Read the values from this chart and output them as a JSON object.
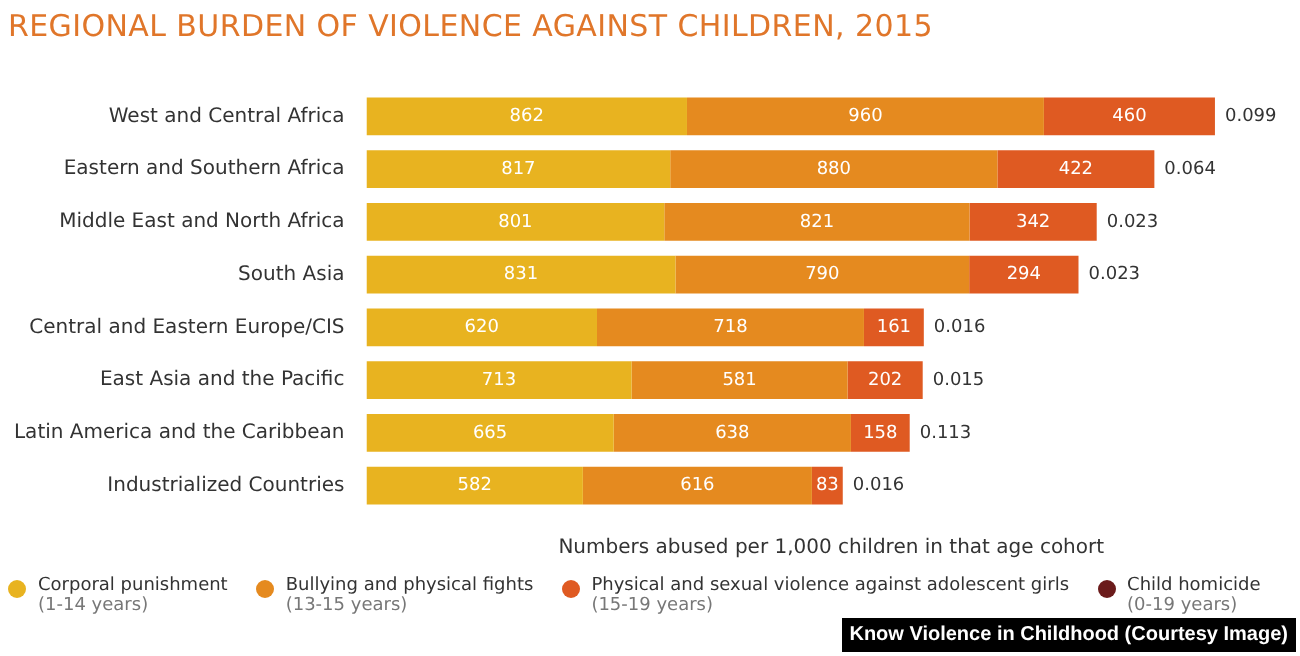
{
  "chart_data": {
    "type": "bar",
    "orientation": "horizontal",
    "stacked": true,
    "title": "REGIONAL BURDEN OF VIOLENCE AGAINST CHILDREN, 2015",
    "xlabel": "Numbers abused per 1,000 children in that age cohort",
    "categories": [
      "West and Central Africa",
      "Eastern and Southern Africa",
      "Middle East and North Africa",
      "South Asia",
      "Central and Eastern Europe/CIS",
      "East Asia and the Pacific",
      "Latin America and the Caribbean",
      "Industrialized Countries"
    ],
    "series": [
      {
        "name": "Corporal punishment\n(1-14 years)",
        "color": "#e8b320",
        "values": [
          862,
          817,
          801,
          831,
          620,
          713,
          665,
          582
        ]
      },
      {
        "name": "Bullying and physical fights\n(13-15 years)",
        "color": "#e58a1f",
        "values": [
          960,
          880,
          821,
          790,
          718,
          581,
          638,
          616
        ]
      },
      {
        "name": "Physical and sexual violence against adolescent girls\n(15-19 years)",
        "color": "#df5a22",
        "values": [
          460,
          422,
          342,
          294,
          161,
          202,
          158,
          83
        ]
      },
      {
        "name": "Child homicide\n(0-19 years)",
        "color": "#6b1b1b",
        "values": [
          0.099,
          0.064,
          0.023,
          0.023,
          0.016,
          0.015,
          0.113,
          0.016
        ]
      }
    ],
    "data_labels": true,
    "grid": false,
    "legend": "bottom",
    "tick_labels": "y",
    "annotations": [
      "Know Violence in Childhood (Courtesy Image)"
    ]
  }
}
